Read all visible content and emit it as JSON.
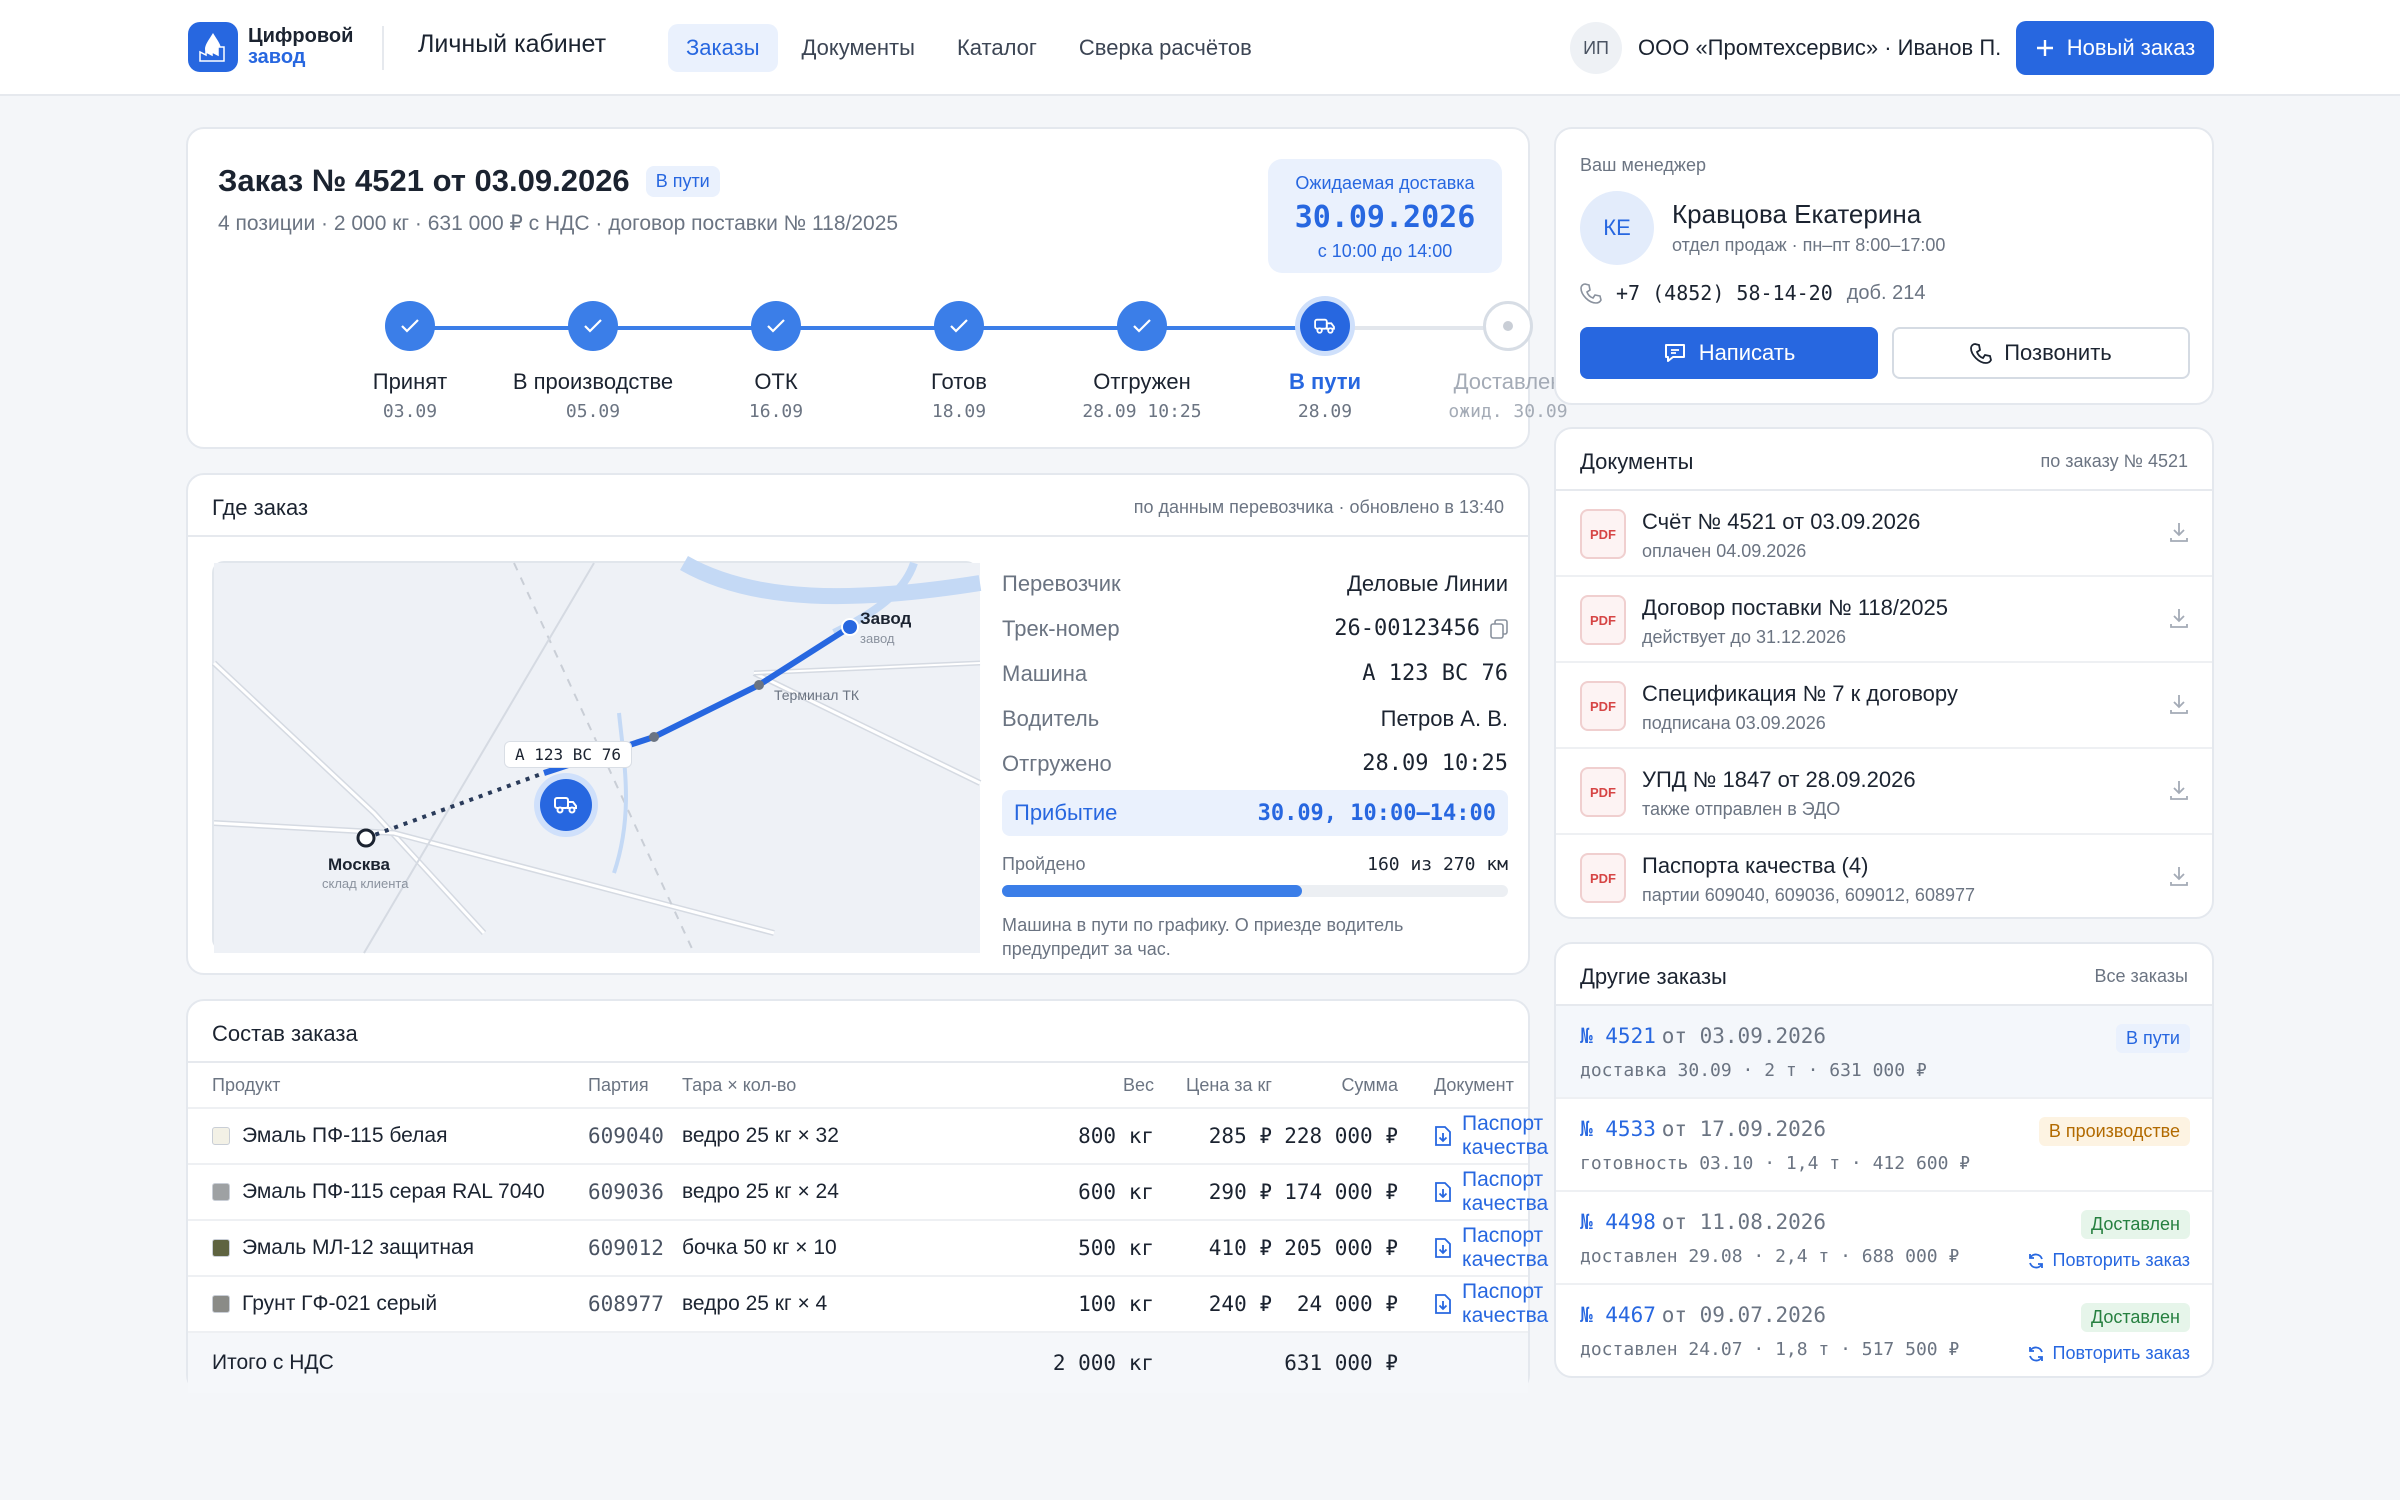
{
  "header": {
    "logo_line1": "Цифровой",
    "logo_line2": "завод",
    "cabinet": "Личный кабинет",
    "nav": [
      "Заказы",
      "Документы",
      "Каталог",
      "Сверка расчётов"
    ],
    "user_initials": "ИП",
    "user_name": "ООО «Промтехсервис» · Иванов П.",
    "new_order": "Новый заказ"
  },
  "order": {
    "title": "Заказ № 4521 от 03.09.2026",
    "badge": "В пути",
    "subtitle": "4 позиции · 2 000 кг · 631 000 ₽ с НДС · договор поставки № 118/2025",
    "delivery_label": "Ожидаемая доставка",
    "delivery_date": "30.09.2026",
    "delivery_time": "с 10:00 до 14:00",
    "steps": [
      {
        "label": "Принят",
        "date": "03.09",
        "state": "done"
      },
      {
        "label": "В производстве",
        "date": "05.09",
        "state": "done"
      },
      {
        "label": "ОТК",
        "date": "16.09",
        "state": "done"
      },
      {
        "label": "Готов",
        "date": "18.09",
        "state": "done"
      },
      {
        "label": "Отгружен",
        "date": "28.09 10:25",
        "state": "done"
      },
      {
        "label": "В пути",
        "date": "28.09",
        "state": "current"
      },
      {
        "label": "Доставлен",
        "date": "ожид. 30.09",
        "state": "future"
      }
    ]
  },
  "where": {
    "title": "Где заказ",
    "aside": "по данным перевозчика · обновлено в 13:40",
    "map": {
      "factory": "Завод",
      "factory_sub": "завод",
      "terminal": "Терминал ТК",
      "truck_plate": "А 123 ВС 76",
      "moscow": "Москва",
      "moscow_sub": "склад клиента"
    },
    "rows": [
      {
        "k": "Перевозчик",
        "v": "Деловые Линии"
      },
      {
        "k": "Трек-номер",
        "v": "26-00123456"
      },
      {
        "k": "Машина",
        "v": "А 123 ВС 76"
      },
      {
        "k": "Водитель",
        "v": "Петров А. В."
      },
      {
        "k": "Отгружено",
        "v": "28.09 10:25"
      }
    ],
    "arrival_label": "Прибытие",
    "arrival_value": "30.09, 10:00–14:00",
    "progress_label": "Пройдено",
    "progress_value": "160 из 270 км",
    "progress_done_km": 160,
    "progress_total_km": 270,
    "note": "Машина в пути по графику. О приезде водитель предупредит за час."
  },
  "composition": {
    "title": "Состав заказа",
    "headers": [
      "Продукт",
      "Партия",
      "Тара × кол-во",
      "Вес",
      "Цена за кг",
      "Сумма",
      "Документ"
    ],
    "rows": [
      {
        "product": "Эмаль ПФ-115 белая",
        "color": "#f3f1e6",
        "batch": "609040",
        "pack": "ведро 25 кг × 32",
        "weight": "800 кг",
        "price": "285 ₽",
        "sum": "228 000 ₽",
        "doc": "Паспорт качества PDF"
      },
      {
        "product": "Эмаль ПФ-115 серая RAL 7040",
        "color": "#9ea1a3",
        "batch": "609036",
        "pack": "ведро 25 кг × 24",
        "weight": "600 кг",
        "price": "290 ₽",
        "sum": "174 000 ₽",
        "doc": "Паспорт качества PDF"
      },
      {
        "product": "Эмаль МЛ-12 защитная",
        "color": "#5e6340",
        "batch": "609012",
        "pack": "бочка 50 кг × 10",
        "weight": "500 кг",
        "price": "410 ₽",
        "sum": "205 000 ₽",
        "doc": "Паспорт качества PDF"
      },
      {
        "product": "Грунт ГФ-021 серый",
        "color": "#8a8b87",
        "batch": "608977",
        "pack": "ведро 25 кг × 4",
        "weight": "100 кг",
        "price": "240 ₽",
        "sum": "24 000 ₽",
        "doc": "Паспорт качества PDF"
      }
    ],
    "total_label": "Итого с НДС",
    "total_weight": "2 000 кг",
    "total_sum": "631 000 ₽"
  },
  "manager": {
    "label": "Ваш менеджер",
    "initials": "КЕ",
    "name": "Кравцова Екатерина",
    "role": "отдел продаж · пн–пт 8:00–17:00",
    "phone": "+7 (4852) 58-14-20",
    "ext": "доб. 214",
    "write": "Написать",
    "call": "Позвонить"
  },
  "documents": {
    "title": "Документы",
    "aside": "по заказу № 4521",
    "pdf": "PDF",
    "items": [
      {
        "name": "Счёт № 4521 от 03.09.2026",
        "sub": "оплачен 04.09.2026"
      },
      {
        "name": "Договор поставки № 118/2025",
        "sub": "действует до 31.12.2026"
      },
      {
        "name": "Спецификация № 7 к договору",
        "sub": "подписана 03.09.2026"
      },
      {
        "name": "УПД № 1847 от 28.09.2026",
        "sub": "также отправлен в ЭДО"
      },
      {
        "name": "Паспорта качества (4)",
        "sub": "партии 609040, 609036, 609012, 608977"
      }
    ]
  },
  "other": {
    "title": "Другие заказы",
    "all": "Все заказы",
    "items": [
      {
        "num": "№ 4521",
        "date": "от 03.09.2026",
        "sub": "доставка 30.09 · 2 т · 631 000 ₽",
        "status": "В пути",
        "kind": "transit",
        "repeat": ""
      },
      {
        "num": "№ 4533",
        "date": "от 17.09.2026",
        "sub": "готовность 03.10 · 1,4 т · 412 600 ₽",
        "status": "В производстве",
        "kind": "prod",
        "repeat": ""
      },
      {
        "num": "№ 4498",
        "date": "от 11.08.2026",
        "sub": "доставлен 29.08 · 2,4 т · 688 000 ₽",
        "status": "Доставлен",
        "kind": "done",
        "repeat": "Повторить заказ"
      },
      {
        "num": "№ 4467",
        "date": "от 09.07.2026",
        "sub": "доставлен 24.07 · 1,8 т · 517 500 ₽",
        "status": "Доставлен",
        "kind": "done",
        "repeat": "Повторить заказ"
      }
    ]
  }
}
